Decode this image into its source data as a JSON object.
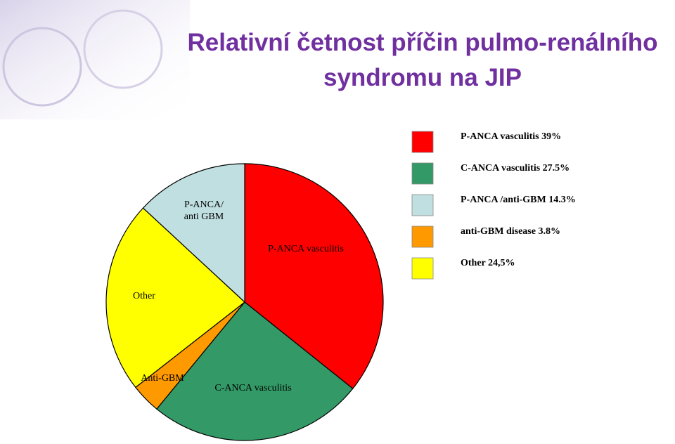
{
  "chart_data": {
    "type": "pie",
    "title": [
      "Relativní četnost příčin pulmo-renálního",
      "syndromu na JIP"
    ],
    "slices": [
      {
        "label": [
          "P-ANCA vasculitis"
        ],
        "value": 39,
        "color": "#ff0000"
      },
      {
        "label": [
          "C-ANCA vasculitis"
        ],
        "value": 27.5,
        "color": "#339966"
      },
      {
        "label": [
          "Anti-GBM"
        ],
        "value": 3.8,
        "color": "#ff9900"
      },
      {
        "label": [
          "Other"
        ],
        "value": 24.5,
        "color": "#ffff00"
      },
      {
        "label": [
          "P-ANCA/",
          "anti GBM"
        ],
        "value": 14.3,
        "color": "#c0dfe0"
      }
    ],
    "legend": [
      {
        "label": "P-ANCA vasculitis 39%",
        "color": "#ff0000"
      },
      {
        "label": "C-ANCA vasculitis 27.5%",
        "color": "#339966"
      },
      {
        "label": "P-ANCA /anti-GBM 14.3%",
        "color": "#c0dfe0"
      },
      {
        "label": "anti-GBM disease 3.8%",
        "color": "#ff9900"
      },
      {
        "label": "Other 24,5%",
        "color": "#ffff00"
      }
    ]
  }
}
